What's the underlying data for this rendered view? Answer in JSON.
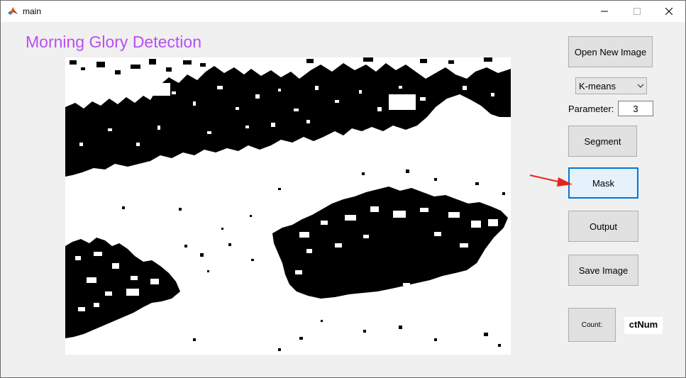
{
  "window": {
    "title": "main",
    "controls": [
      "minimize-icon",
      "maximize-icon",
      "close-icon"
    ]
  },
  "heading": "Morning Glory Detection",
  "controls": {
    "open_image_label": "Open New Image",
    "method_select": {
      "selected": "K-means"
    },
    "parameter": {
      "label": "Parameter:",
      "value": "3"
    },
    "segment_label": "Segment",
    "mask_label": "Mask",
    "output_label": "Output",
    "save_image_label": "Save Image",
    "count_label": "Count:",
    "count_value": "ctNum"
  },
  "image": {
    "description_icon": "binary-mask-image"
  },
  "annotation": {
    "icon": "red-arrow-icon",
    "color": "#e8231b"
  },
  "colors": {
    "heading": "#b84ff0",
    "focused_button_bg": "#e5f1fb",
    "focused_button_border": "#0078d7"
  }
}
